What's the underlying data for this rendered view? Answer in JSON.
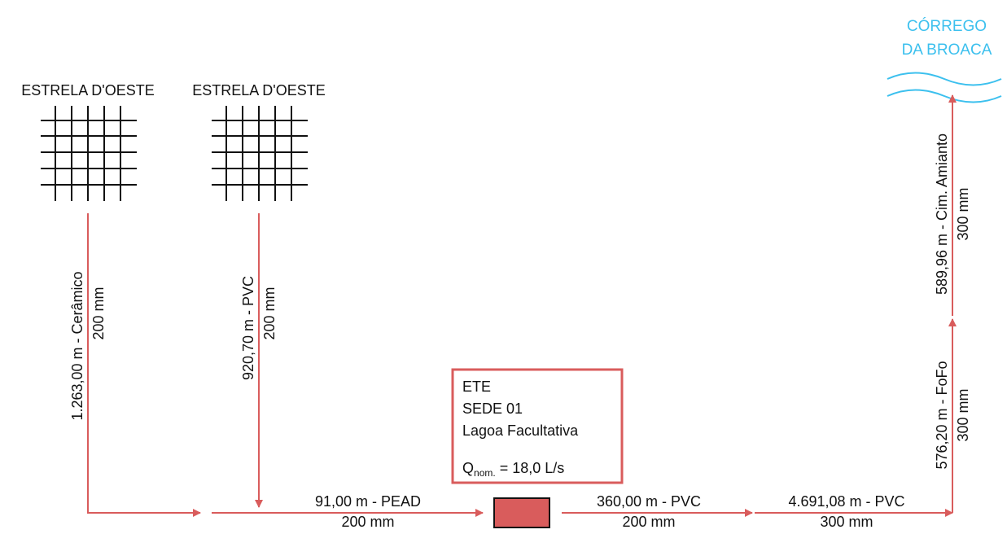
{
  "colors": {
    "pipe": "#d95c5c",
    "river": "#3cc0ee",
    "grid": "#111111",
    "text": "#111111"
  },
  "cities": [
    {
      "name": "ESTRELA D'OESTE"
    },
    {
      "name": "ESTRELA D'OESTE"
    }
  ],
  "river": {
    "line1": "CÓRREGO",
    "line2": "DA BROACA"
  },
  "pipes": {
    "city1_down": {
      "length": "1.263,00 m - Cerâmico",
      "diameter": "200 mm"
    },
    "city2_down": {
      "length": "920,70 m - PVC",
      "diameter": "200 mm"
    },
    "to_ete": {
      "length": "91,00 m - PEAD",
      "diameter": "200 mm"
    },
    "after_ete": {
      "length": "360,00 m - PVC",
      "diameter": "200 mm"
    },
    "long_run": {
      "length": "4.691,08 m - PVC",
      "diameter": "300 mm"
    },
    "rise_fofo": {
      "length": "576,20 m - FoFo",
      "diameter": "300 mm"
    },
    "rise_amianto": {
      "length": "589,96 m - Cim. Amianto",
      "diameter": "300 mm"
    }
  },
  "ete": {
    "line1": "ETE",
    "line2": "SEDE 01",
    "line3": "Lagoa Facultativa",
    "flow_symbol": "Q",
    "flow_sub": "nom.",
    "flow_value": " = 18,0 L/s"
  }
}
